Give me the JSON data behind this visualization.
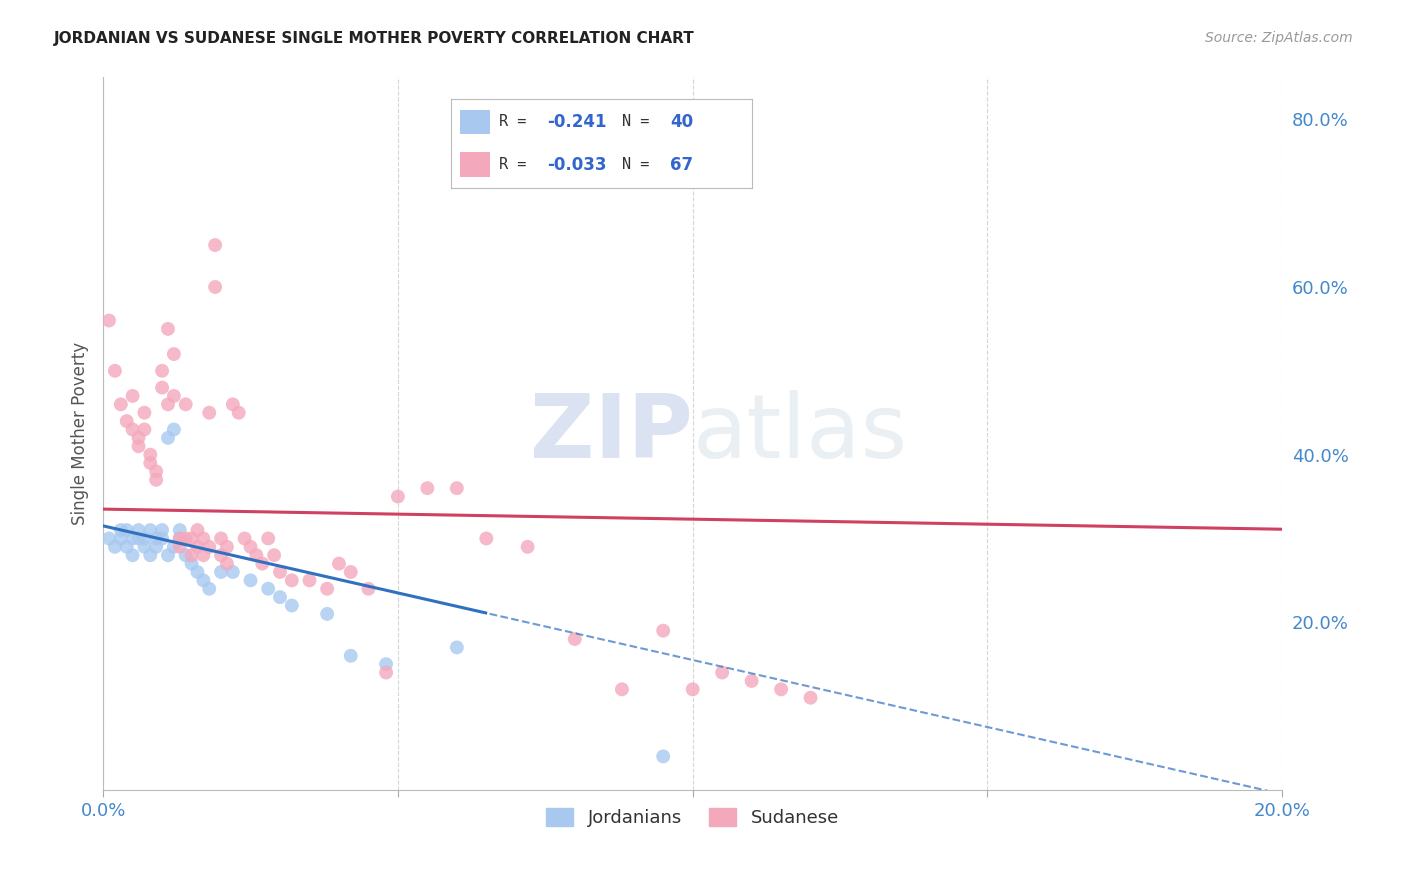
{
  "title": "JORDANIAN VS SUDANESE SINGLE MOTHER POVERTY CORRELATION CHART",
  "source": "Source: ZipAtlas.com",
  "ylabel": "Single Mother Poverty",
  "xlim": [
    0.0,
    0.2
  ],
  "ylim": [
    0.0,
    0.85
  ],
  "x_tick_positions": [
    0.0,
    0.05,
    0.1,
    0.15,
    0.2
  ],
  "x_tick_labels": [
    "0.0%",
    "",
    "",
    "",
    "20.0%"
  ],
  "y_ticks_right": [
    0.2,
    0.4,
    0.6,
    0.8
  ],
  "y_tick_labels_right": [
    "20.0%",
    "40.0%",
    "60.0%",
    "80.0%"
  ],
  "jordanian_color": "#A8C8F0",
  "sudanese_color": "#F4A8BC",
  "trend_jordanian_color": "#3070C0",
  "trend_sudanese_color": "#D04060",
  "R_jordanian": -0.241,
  "N_jordanian": 40,
  "R_sudanese": -0.033,
  "N_sudanese": 67,
  "jordanian_x": [
    0.001,
    0.002,
    0.003,
    0.003,
    0.004,
    0.004,
    0.005,
    0.005,
    0.006,
    0.006,
    0.007,
    0.007,
    0.008,
    0.008,
    0.009,
    0.009,
    0.01,
    0.01,
    0.011,
    0.011,
    0.012,
    0.012,
    0.013,
    0.013,
    0.014,
    0.015,
    0.016,
    0.017,
    0.018,
    0.02,
    0.022,
    0.025,
    0.028,
    0.03,
    0.032,
    0.038,
    0.042,
    0.048,
    0.06,
    0.095
  ],
  "jordanian_y": [
    0.3,
    0.29,
    0.31,
    0.3,
    0.29,
    0.31,
    0.3,
    0.28,
    0.31,
    0.3,
    0.29,
    0.3,
    0.31,
    0.28,
    0.3,
    0.29,
    0.31,
    0.3,
    0.42,
    0.28,
    0.43,
    0.29,
    0.3,
    0.31,
    0.28,
    0.27,
    0.26,
    0.25,
    0.24,
    0.26,
    0.26,
    0.25,
    0.24,
    0.23,
    0.22,
    0.21,
    0.16,
    0.15,
    0.17,
    0.04
  ],
  "sudanese_x": [
    0.001,
    0.002,
    0.003,
    0.004,
    0.005,
    0.005,
    0.006,
    0.006,
    0.007,
    0.007,
    0.008,
    0.008,
    0.009,
    0.009,
    0.01,
    0.01,
    0.011,
    0.011,
    0.012,
    0.012,
    0.013,
    0.013,
    0.014,
    0.014,
    0.015,
    0.015,
    0.016,
    0.016,
    0.017,
    0.017,
    0.018,
    0.018,
    0.019,
    0.019,
    0.02,
    0.02,
    0.021,
    0.021,
    0.022,
    0.023,
    0.024,
    0.025,
    0.026,
    0.027,
    0.028,
    0.029,
    0.03,
    0.032,
    0.035,
    0.038,
    0.04,
    0.042,
    0.045,
    0.048,
    0.05,
    0.055,
    0.06,
    0.065,
    0.072,
    0.08,
    0.088,
    0.095,
    0.1,
    0.105,
    0.11,
    0.115,
    0.12
  ],
  "sudanese_y": [
    0.56,
    0.5,
    0.46,
    0.44,
    0.47,
    0.43,
    0.42,
    0.41,
    0.45,
    0.43,
    0.4,
    0.39,
    0.38,
    0.37,
    0.5,
    0.48,
    0.55,
    0.46,
    0.52,
    0.47,
    0.3,
    0.29,
    0.46,
    0.3,
    0.3,
    0.28,
    0.31,
    0.29,
    0.28,
    0.3,
    0.29,
    0.45,
    0.65,
    0.6,
    0.3,
    0.28,
    0.29,
    0.27,
    0.46,
    0.45,
    0.3,
    0.29,
    0.28,
    0.27,
    0.3,
    0.28,
    0.26,
    0.25,
    0.25,
    0.24,
    0.27,
    0.26,
    0.24,
    0.14,
    0.35,
    0.36,
    0.36,
    0.3,
    0.29,
    0.18,
    0.12,
    0.19,
    0.12,
    0.14,
    0.13,
    0.12,
    0.11
  ],
  "watermark_zip": "ZIP",
  "watermark_atlas": "atlas",
  "background_color": "#FFFFFF",
  "grid_color": "#CCCCCC",
  "legend_text_color": "#3366CC",
  "legend_label_color": "#333333"
}
